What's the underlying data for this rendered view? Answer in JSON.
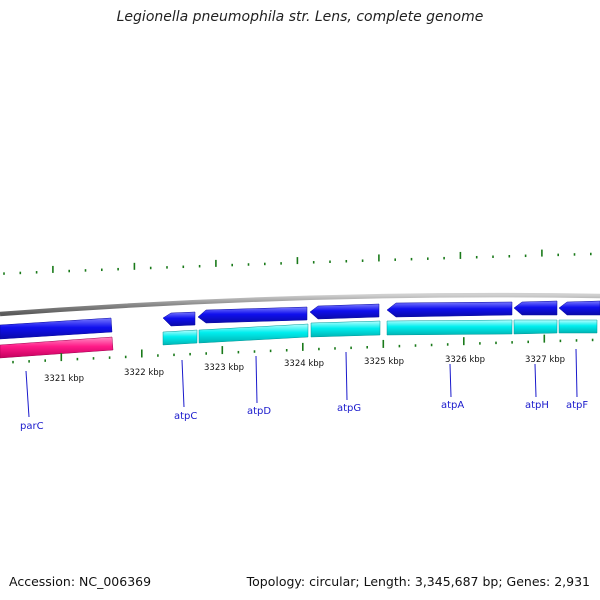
{
  "title": "Legionella pneumophila str. Lens, complete genome",
  "footer": {
    "accession": "Accession: NC_006369",
    "stats": "Topology: circular; Length: 3,345,687 bp; Genes: 2,931"
  },
  "colors": {
    "forward_cds": "#1010ee",
    "reverse_cds": "#00eeee",
    "rna_track": "#ff1a88",
    "tick": "#1a7a1a",
    "backbone": "#8a8a8a",
    "label": "#1a1acc"
  },
  "scale_labels": [
    "3321 kbp",
    "3322 kbp",
    "3323 kbp",
    "3324 kbp",
    "3325 kbp",
    "3326 kbp",
    "3327 kbp"
  ],
  "genes": [
    {
      "name": "parC"
    },
    {
      "name": "atpC"
    },
    {
      "name": "atpD"
    },
    {
      "name": "atpG"
    },
    {
      "name": "atpA"
    },
    {
      "name": "atpH"
    },
    {
      "name": "atpF"
    }
  ]
}
